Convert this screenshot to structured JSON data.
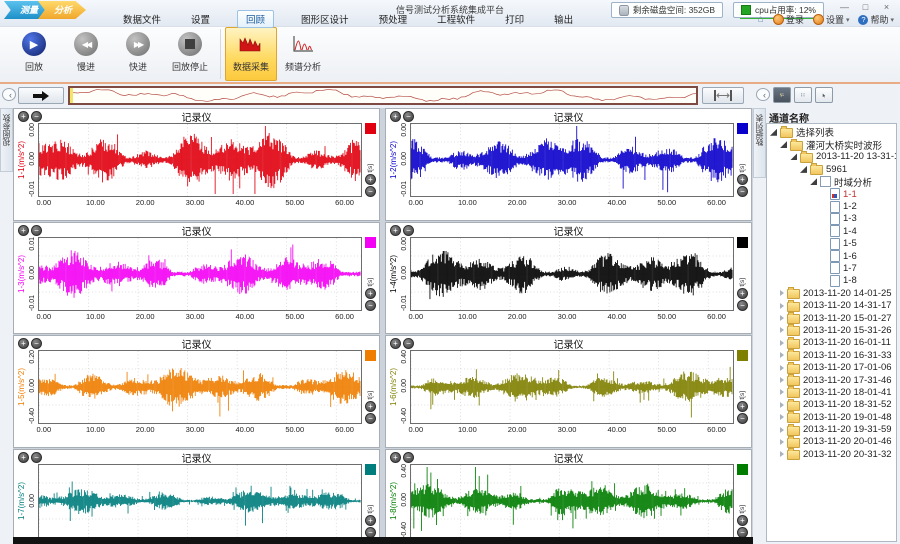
{
  "window": {
    "title": "信号测试分析系统集成平台",
    "logo_tabs": [
      {
        "label": "测量",
        "color": "#1d8fc8"
      },
      {
        "label": "分析",
        "color": "#f0a72c"
      }
    ],
    "status_items": [
      {
        "icon": "disk-icon",
        "label": "剩余磁盘空间: 352GB"
      },
      {
        "icon": "cpu-icon",
        "label": "cpu占用率: 12%",
        "accent": "#23a523"
      }
    ],
    "controls": {
      "minimize": "—",
      "maximize": "□",
      "close": "×"
    }
  },
  "menu": {
    "items": [
      {
        "label": "数据文件",
        "active": false
      },
      {
        "label": "设置",
        "active": false
      },
      {
        "label": "回顾",
        "active": true
      },
      {
        "label": "图形区设计",
        "active": false
      },
      {
        "label": "预处理",
        "active": false
      },
      {
        "label": "工程软件",
        "active": false
      },
      {
        "label": "打印",
        "active": false
      },
      {
        "label": "输出",
        "active": false
      }
    ],
    "right": [
      {
        "icon": "home-icon",
        "label": ""
      },
      {
        "icon": "gear-icon",
        "label": "登录"
      },
      {
        "icon": "gear-icon",
        "label": "设置",
        "caret": "▾"
      },
      {
        "icon": "help-icon",
        "label": "帮助",
        "caret": "▾"
      }
    ]
  },
  "toolbar": {
    "buttons": [
      {
        "label": "回放",
        "icon": "play-icon",
        "active": false
      },
      {
        "label": "慢进",
        "icon": "rewind-icon",
        "active": false
      },
      {
        "label": "快进",
        "icon": "fast-forward-icon",
        "active": false
      },
      {
        "label": "回放停止",
        "icon": "stop-icon",
        "active": false
      },
      {
        "label": "数据采集",
        "icon": "waveform-icon",
        "active": true
      },
      {
        "label": "频谱分析",
        "icon": "spectrum-icon",
        "active": false
      }
    ]
  },
  "overview": {
    "wave_color": "#b65048"
  },
  "left_tab": {
    "label": "视图参数"
  },
  "right_tab": {
    "label": "数据列表"
  },
  "right_panel": {
    "header": "通道名称",
    "tree": [
      {
        "label": "选择列表",
        "depth": 0,
        "icon": "folder",
        "state": "expanded"
      },
      {
        "label": "灌河大桥实时波形",
        "depth": 1,
        "icon": "folder",
        "state": "expanded"
      },
      {
        "label": "2013-11-20 13-31-17",
        "depth": 2,
        "icon": "folder",
        "state": "expanded"
      },
      {
        "label": "5961",
        "depth": 3,
        "icon": "folder",
        "state": "expanded"
      },
      {
        "label": "时域分析",
        "depth": 4,
        "icon": "checkbox",
        "state": "expanded"
      },
      {
        "label": "1-1",
        "depth": 5,
        "icon": "chart-file",
        "selected": true
      },
      {
        "label": "1-2",
        "depth": 5,
        "icon": "file"
      },
      {
        "label": "1-3",
        "depth": 5,
        "icon": "file"
      },
      {
        "label": "1-4",
        "depth": 5,
        "icon": "file"
      },
      {
        "label": "1-5",
        "depth": 5,
        "icon": "file"
      },
      {
        "label": "1-6",
        "depth": 5,
        "icon": "file"
      },
      {
        "label": "1-7",
        "depth": 5,
        "icon": "file"
      },
      {
        "label": "1-8",
        "depth": 5,
        "icon": "file"
      },
      {
        "label": "2013-11-20 14-01-25",
        "depth": 1,
        "icon": "folder",
        "state": "collapsed"
      },
      {
        "label": "2013-11-20 14-31-17",
        "depth": 1,
        "icon": "folder",
        "state": "collapsed"
      },
      {
        "label": "2013-11-20 15-01-27",
        "depth": 1,
        "icon": "folder",
        "state": "collapsed"
      },
      {
        "label": "2013-11-20 15-31-26",
        "depth": 1,
        "icon": "folder",
        "state": "collapsed"
      },
      {
        "label": "2013-11-20 16-01-11",
        "depth": 1,
        "icon": "folder",
        "state": "collapsed"
      },
      {
        "label": "2013-11-20 16-31-33",
        "depth": 1,
        "icon": "folder",
        "state": "collapsed"
      },
      {
        "label": "2013-11-20 17-01-06",
        "depth": 1,
        "icon": "folder",
        "state": "collapsed"
      },
      {
        "label": "2013-11-20 17-31-46",
        "depth": 1,
        "icon": "folder",
        "state": "collapsed"
      },
      {
        "label": "2013-11-20 18-01-41",
        "depth": 1,
        "icon": "folder",
        "state": "collapsed"
      },
      {
        "label": "2013-11-20 18-31-52",
        "depth": 1,
        "icon": "folder",
        "state": "collapsed"
      },
      {
        "label": "2013-11-20 19-01-48",
        "depth": 1,
        "icon": "folder",
        "state": "collapsed"
      },
      {
        "label": "2013-11-20 19-31-59",
        "depth": 1,
        "icon": "folder",
        "state": "collapsed"
      },
      {
        "label": "2013-11-20 20-01-46",
        "depth": 1,
        "icon": "folder",
        "state": "collapsed"
      },
      {
        "label": "2013-11-20 20-31-32",
        "depth": 1,
        "icon": "folder",
        "state": "collapsed"
      }
    ]
  },
  "chart_common": {
    "title": "记录仪",
    "x_ticks": [
      "0.00",
      "10.00",
      "20.00",
      "30.00",
      "40.00",
      "50.00",
      "60.00"
    ],
    "x_max": 65,
    "x_unit": "t[s]",
    "zoom_in": "+",
    "zoom_out": "−"
  },
  "charts": [
    {
      "ylabel": "1-1(m/s^2)",
      "color": "#e1000f",
      "y_ticks": [
        "0.00",
        "0.00",
        "-0.01"
      ]
    },
    {
      "ylabel": "1-2(m/s^2)",
      "color": "#0a00cc",
      "y_ticks": [
        "0.00",
        "0.00",
        "-0.01"
      ]
    },
    {
      "ylabel": "1-3(m/s^2)",
      "color": "#f400f4",
      "y_ticks": [
        "0.01",
        "0.00",
        "-0.01"
      ]
    },
    {
      "ylabel": "1-4(m/s^2)",
      "color": "#000000",
      "y_ticks": [
        "0.00",
        "0.00",
        "-0.01"
      ]
    },
    {
      "ylabel": "1-5(m/s^2)",
      "color": "#ef7d00",
      "y_ticks": [
        "0.20",
        "0.00",
        "-0.40"
      ]
    },
    {
      "ylabel": "1-6(m/s^2)",
      "color": "#7f7f00",
      "y_ticks": [
        "0.40",
        "0.00",
        "-0.40"
      ]
    },
    {
      "ylabel": "1-7(m/s^2)",
      "color": "#007d7d",
      "y_ticks": [
        "0.00"
      ]
    },
    {
      "ylabel": "1-8(m/s^2)",
      "color": "#007d00",
      "y_ticks": [
        "0.40",
        "0.00",
        "-0.40"
      ]
    }
  ]
}
